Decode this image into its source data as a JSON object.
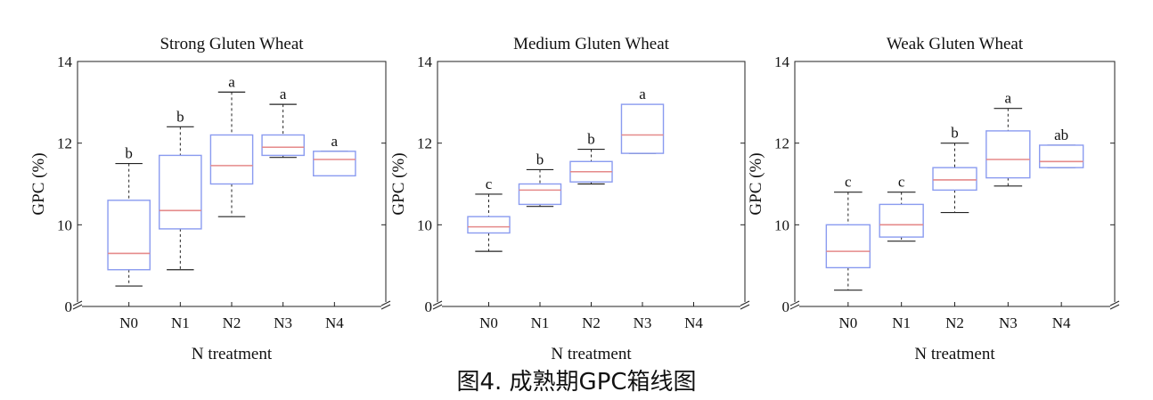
{
  "caption": "图4. 成熟期GPC箱线图",
  "colors": {
    "box": "#8a9bf0",
    "median": "#e58a8a",
    "whisker": "#222222",
    "frame": "#222222"
  },
  "chart_data": [
    {
      "type": "box",
      "title": "Strong Gluten Wheat",
      "xlabel": "N treatment",
      "ylabel": "GPC (%)",
      "ylim": [
        8,
        14
      ],
      "axis_break": true,
      "yticks": [
        14,
        12,
        10,
        0
      ],
      "categories": [
        "N0",
        "N1",
        "N2",
        "N3",
        "N4"
      ],
      "boxes": [
        {
          "whislo": 8.5,
          "q1": 8.9,
          "med": 9.3,
          "q3": 10.6,
          "whishi": 11.5,
          "letter": "b"
        },
        {
          "whislo": 8.9,
          "q1": 9.9,
          "med": 10.35,
          "q3": 11.7,
          "whishi": 12.4,
          "letter": "b"
        },
        {
          "whislo": 10.2,
          "q1": 11.0,
          "med": 11.45,
          "q3": 12.2,
          "whishi": 13.25,
          "letter": "a"
        },
        {
          "whislo": 11.65,
          "q1": 11.7,
          "med": 11.9,
          "q3": 12.2,
          "whishi": 12.95,
          "letter": "a"
        },
        {
          "whislo": 11.2,
          "q1": 11.2,
          "med": 11.6,
          "q3": 11.8,
          "whishi": 11.8,
          "letter": "a"
        }
      ]
    },
    {
      "type": "box",
      "title": "Medium Gluten Wheat",
      "xlabel": "N treatment",
      "ylabel": "GPC (%)",
      "ylim": [
        8,
        14
      ],
      "axis_break": true,
      "yticks": [
        14,
        12,
        10,
        0
      ],
      "categories": [
        "N0",
        "N1",
        "N2",
        "N3",
        "N4"
      ],
      "boxes": [
        {
          "whislo": 9.35,
          "q1": 9.8,
          "med": 9.95,
          "q3": 10.2,
          "whishi": 10.75,
          "letter": "c"
        },
        {
          "whislo": 10.45,
          "q1": 10.5,
          "med": 10.85,
          "q3": 11.0,
          "whishi": 11.35,
          "letter": "b"
        },
        {
          "whislo": 11.0,
          "q1": 11.05,
          "med": 11.3,
          "q3": 11.55,
          "whishi": 11.85,
          "letter": "b"
        },
        {
          "whislo": 11.75,
          "q1": 11.75,
          "med": 12.2,
          "q3": 12.95,
          "whishi": 12.95,
          "letter": "a"
        },
        null
      ]
    },
    {
      "type": "box",
      "title": "Weak Gluten Wheat",
      "xlabel": "N treatment",
      "ylabel": "GPC (%)",
      "ylim": [
        8,
        14
      ],
      "axis_break": true,
      "yticks": [
        14,
        12,
        10,
        0
      ],
      "categories": [
        "N0",
        "N1",
        "N2",
        "N3",
        "N4"
      ],
      "boxes": [
        {
          "whislo": 8.4,
          "q1": 8.95,
          "med": 9.35,
          "q3": 10.0,
          "whishi": 10.8,
          "letter": "c"
        },
        {
          "whislo": 9.6,
          "q1": 9.7,
          "med": 10.0,
          "q3": 10.5,
          "whishi": 10.8,
          "letter": "c"
        },
        {
          "whislo": 10.3,
          "q1": 10.85,
          "med": 11.1,
          "q3": 11.4,
          "whishi": 12.0,
          "letter": "b"
        },
        {
          "whislo": 10.95,
          "q1": 11.15,
          "med": 11.6,
          "q3": 12.3,
          "whishi": 12.85,
          "letter": "a"
        },
        {
          "whislo": 11.4,
          "q1": 11.4,
          "med": 11.55,
          "q3": 11.95,
          "whishi": 11.95,
          "letter": "ab"
        }
      ]
    }
  ]
}
